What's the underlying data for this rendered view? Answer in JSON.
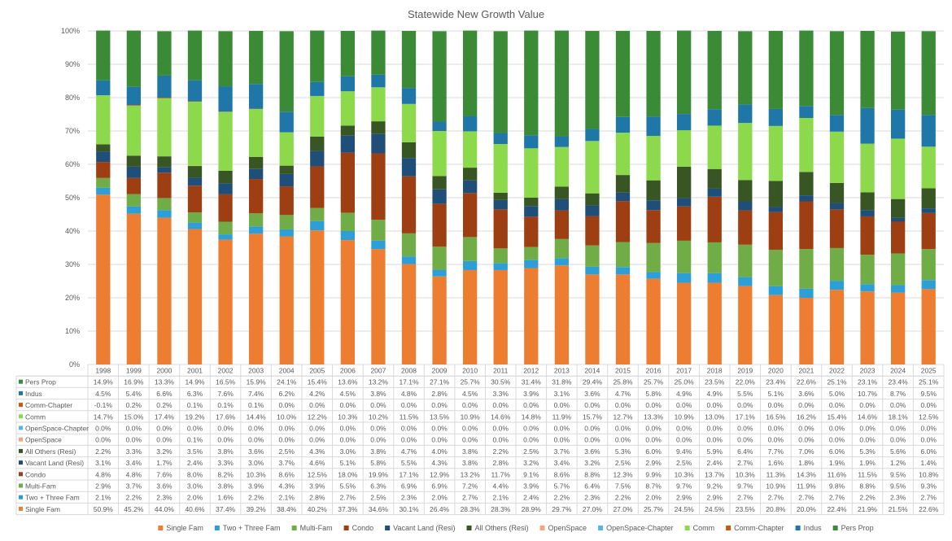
{
  "chart_data": {
    "type": "bar",
    "stacked": true,
    "title": "Statewide New Growth Value",
    "y_ticks": [
      "0%",
      "10%",
      "20%",
      "30%",
      "40%",
      "50%",
      "60%",
      "70%",
      "80%",
      "90%",
      "100%"
    ],
    "ylim": [
      0,
      100
    ],
    "categories": [
      "1998",
      "1999",
      "2000",
      "2001",
      "2002",
      "2003",
      "2004",
      "2005",
      "2006",
      "2007",
      "2008",
      "2009",
      "2010",
      "2011",
      "2012",
      "2013",
      "2014",
      "2015",
      "2016",
      "2017",
      "2018",
      "2019",
      "2020",
      "2021",
      "2022",
      "2023",
      "2024",
      "2025"
    ],
    "grid": true,
    "legend_position": "bottom",
    "series": [
      {
        "name": "Single Fam",
        "color": "#ED7D31",
        "labels": [
          "50.9%",
          "45.2%",
          "44.0%",
          "40.6%",
          "37.4%",
          "39.2%",
          "38.4%",
          "40.2%",
          "37.3%",
          "34.6%",
          "30.1%",
          "26.4%",
          "28.3%",
          "28.3%",
          "28.9%",
          "29.7%",
          "27.0%",
          "27.0%",
          "25.7%",
          "24.5%",
          "24.5%",
          "23.5%",
          "20.8%",
          "20.0%",
          "22.4%",
          "21.9%",
          "21.5%",
          "22.6%"
        ]
      },
      {
        "name": "Two + Three Fam",
        "color": "#2E9FD6",
        "labels": [
          "2.1%",
          "2.2%",
          "2.3%",
          "2.0%",
          "1.6%",
          "2.2%",
          "2.1%",
          "2.8%",
          "2.7%",
          "2.5%",
          "2.3%",
          "2.0%",
          "2.7%",
          "2.1%",
          "2.4%",
          "2.2%",
          "2.3%",
          "2.2%",
          "2.0%",
          "2.9%",
          "2.9%",
          "2.7%",
          "2.7%",
          "2.7%",
          "2.7%",
          "2.2%",
          "2.3%",
          "2.7%"
        ]
      },
      {
        "name": "Multi-Fam",
        "color": "#70AD47",
        "labels": [
          "2.9%",
          "3.7%",
          "3.6%",
          "3.0%",
          "3.8%",
          "3.9%",
          "4.3%",
          "3.9%",
          "5.5%",
          "6.3%",
          "6.9%",
          "6.9%",
          "7.2%",
          "4.4%",
          "3.9%",
          "5.7%",
          "6.4%",
          "7.5%",
          "8.7%",
          "9.7%",
          "9.2%",
          "9.7%",
          "10.9%",
          "11.9%",
          "9.8%",
          "8.8%",
          "9.5%",
          "9.3%"
        ]
      },
      {
        "name": "Condo",
        "color": "#9E3F13",
        "labels": [
          "4.8%",
          "4.8%",
          "7.6%",
          "8.0%",
          "8.2%",
          "10.3%",
          "8.6%",
          "12.5%",
          "18.0%",
          "19.9%",
          "17.1%",
          "12.9%",
          "13.2%",
          "11.7%",
          "9.1%",
          "8.6%",
          "8.8%",
          "12.3%",
          "9.9%",
          "10.3%",
          "13.7%",
          "10.3%",
          "11.3%",
          "14.3%",
          "11.6%",
          "11.5%",
          "9.5%",
          "10.8%"
        ]
      },
      {
        "name": "Vacant Land (Resi)",
        "color": "#1F4E79",
        "labels": [
          "3.1%",
          "3.4%",
          "1.7%",
          "2.4%",
          "3.3%",
          "3.0%",
          "3.7%",
          "4.6%",
          "5.1%",
          "5.8%",
          "5.5%",
          "4.3%",
          "3.8%",
          "2.8%",
          "3.2%",
          "3.4%",
          "3.2%",
          "2.5%",
          "2.9%",
          "2.5%",
          "2.4%",
          "2.7%",
          "1.6%",
          "1.8%",
          "1.9%",
          "1.9%",
          "1.2%",
          "1.4%"
        ]
      },
      {
        "name": "All Others (Resi)",
        "color": "#375623",
        "labels": [
          "2.2%",
          "3.3%",
          "3.2%",
          "3.5%",
          "3.8%",
          "3.6%",
          "2.5%",
          "4.3%",
          "3.0%",
          "3.8%",
          "4.7%",
          "4.0%",
          "3.8%",
          "2.2%",
          "2.5%",
          "3.7%",
          "3.6%",
          "5.3%",
          "6.0%",
          "9.4%",
          "5.9%",
          "6.4%",
          "7.7%",
          "7.0%",
          "6.0%",
          "5.3%",
          "5.6%",
          "6.0%"
        ]
      },
      {
        "name": "OpenSpace",
        "color": "#F4A582",
        "labels": [
          "0.0%",
          "0.0%",
          "0.0%",
          "0.1%",
          "0.0%",
          "0.0%",
          "0.0%",
          "0.0%",
          "0.0%",
          "0.0%",
          "0.0%",
          "0.0%",
          "0.0%",
          "0.0%",
          "0.0%",
          "0.0%",
          "0.0%",
          "0.0%",
          "0.0%",
          "0.0%",
          "0.0%",
          "0.0%",
          "0.0%",
          "0.0%",
          "0.0%",
          "0.0%",
          "0.0%",
          "0.0%"
        ]
      },
      {
        "name": "OpenSpace-Chapter",
        "color": "#56B4E9",
        "labels": [
          "0.0%",
          "0.0%",
          "0.0%",
          "0.0%",
          "0.0%",
          "0.0%",
          "0.0%",
          "0.0%",
          "0.0%",
          "0.0%",
          "0.0%",
          "0.0%",
          "0.0%",
          "0.0%",
          "0.0%",
          "0.0%",
          "0.0%",
          "0.0%",
          "0.0%",
          "0.0%",
          "0.0%",
          "0.0%",
          "0.0%",
          "0.0%",
          "0.0%",
          "0.0%",
          "0.0%",
          "0.0%"
        ]
      },
      {
        "name": "Comm",
        "color": "#8CD94C",
        "labels": [
          "14.7%",
          "15.0%",
          "17.4%",
          "19.2%",
          "17.6%",
          "14.4%",
          "10.0%",
          "12.2%",
          "10.3%",
          "10.2%",
          "11.5%",
          "13.5%",
          "10.9%",
          "14.6%",
          "14.8%",
          "11.9%",
          "15.7%",
          "12.7%",
          "13.3%",
          "10.9%",
          "13.0%",
          "17.1%",
          "16.5%",
          "16.2%",
          "15.4%",
          "14.6%",
          "18.1%",
          "12.5%"
        ]
      },
      {
        "name": "Comm-Chapter",
        "color": "#C55A11",
        "labels": [
          "-0.1%",
          "0.2%",
          "0.2%",
          "0.1%",
          "0.1%",
          "0.1%",
          "0.0%",
          "0.0%",
          "0.0%",
          "0.0%",
          "0.0%",
          "0.0%",
          "0.0%",
          "0.0%",
          "0.0%",
          "0.0%",
          "0.0%",
          "0.0%",
          "0.0%",
          "0.0%",
          "0.0%",
          "0.0%",
          "0.0%",
          "0.0%",
          "0.0%",
          "0.0%",
          "0.0%",
          "0.0%"
        ]
      },
      {
        "name": "Indus",
        "color": "#1F77A8",
        "labels": [
          "4.5%",
          "5.4%",
          "6.6%",
          "6.3%",
          "7.6%",
          "7.4%",
          "6.2%",
          "4.2%",
          "4.5%",
          "3.8%",
          "4.8%",
          "2.8%",
          "4.5%",
          "3.3%",
          "3.9%",
          "3.1%",
          "3.6%",
          "4.7%",
          "5.8%",
          "4.9%",
          "4.9%",
          "5.5%",
          "5.1%",
          "3.6%",
          "5.0%",
          "10.7%",
          "8.7%",
          "9.5%"
        ]
      },
      {
        "name": "Pers Prop",
        "color": "#3A8A36",
        "labels": [
          "14.9%",
          "16.9%",
          "13.3%",
          "14.9%",
          "16.5%",
          "15.9%",
          "24.1%",
          "15.4%",
          "13.6%",
          "13.2%",
          "17.1%",
          "27.1%",
          "25.7%",
          "30.5%",
          "31.4%",
          "31.8%",
          "29.4%",
          "25.8%",
          "25.7%",
          "25.0%",
          "23.5%",
          "22.0%",
          "23.4%",
          "22.6%",
          "25.1%",
          "23.1%",
          "23.4%",
          "25.1%"
        ]
      }
    ]
  }
}
